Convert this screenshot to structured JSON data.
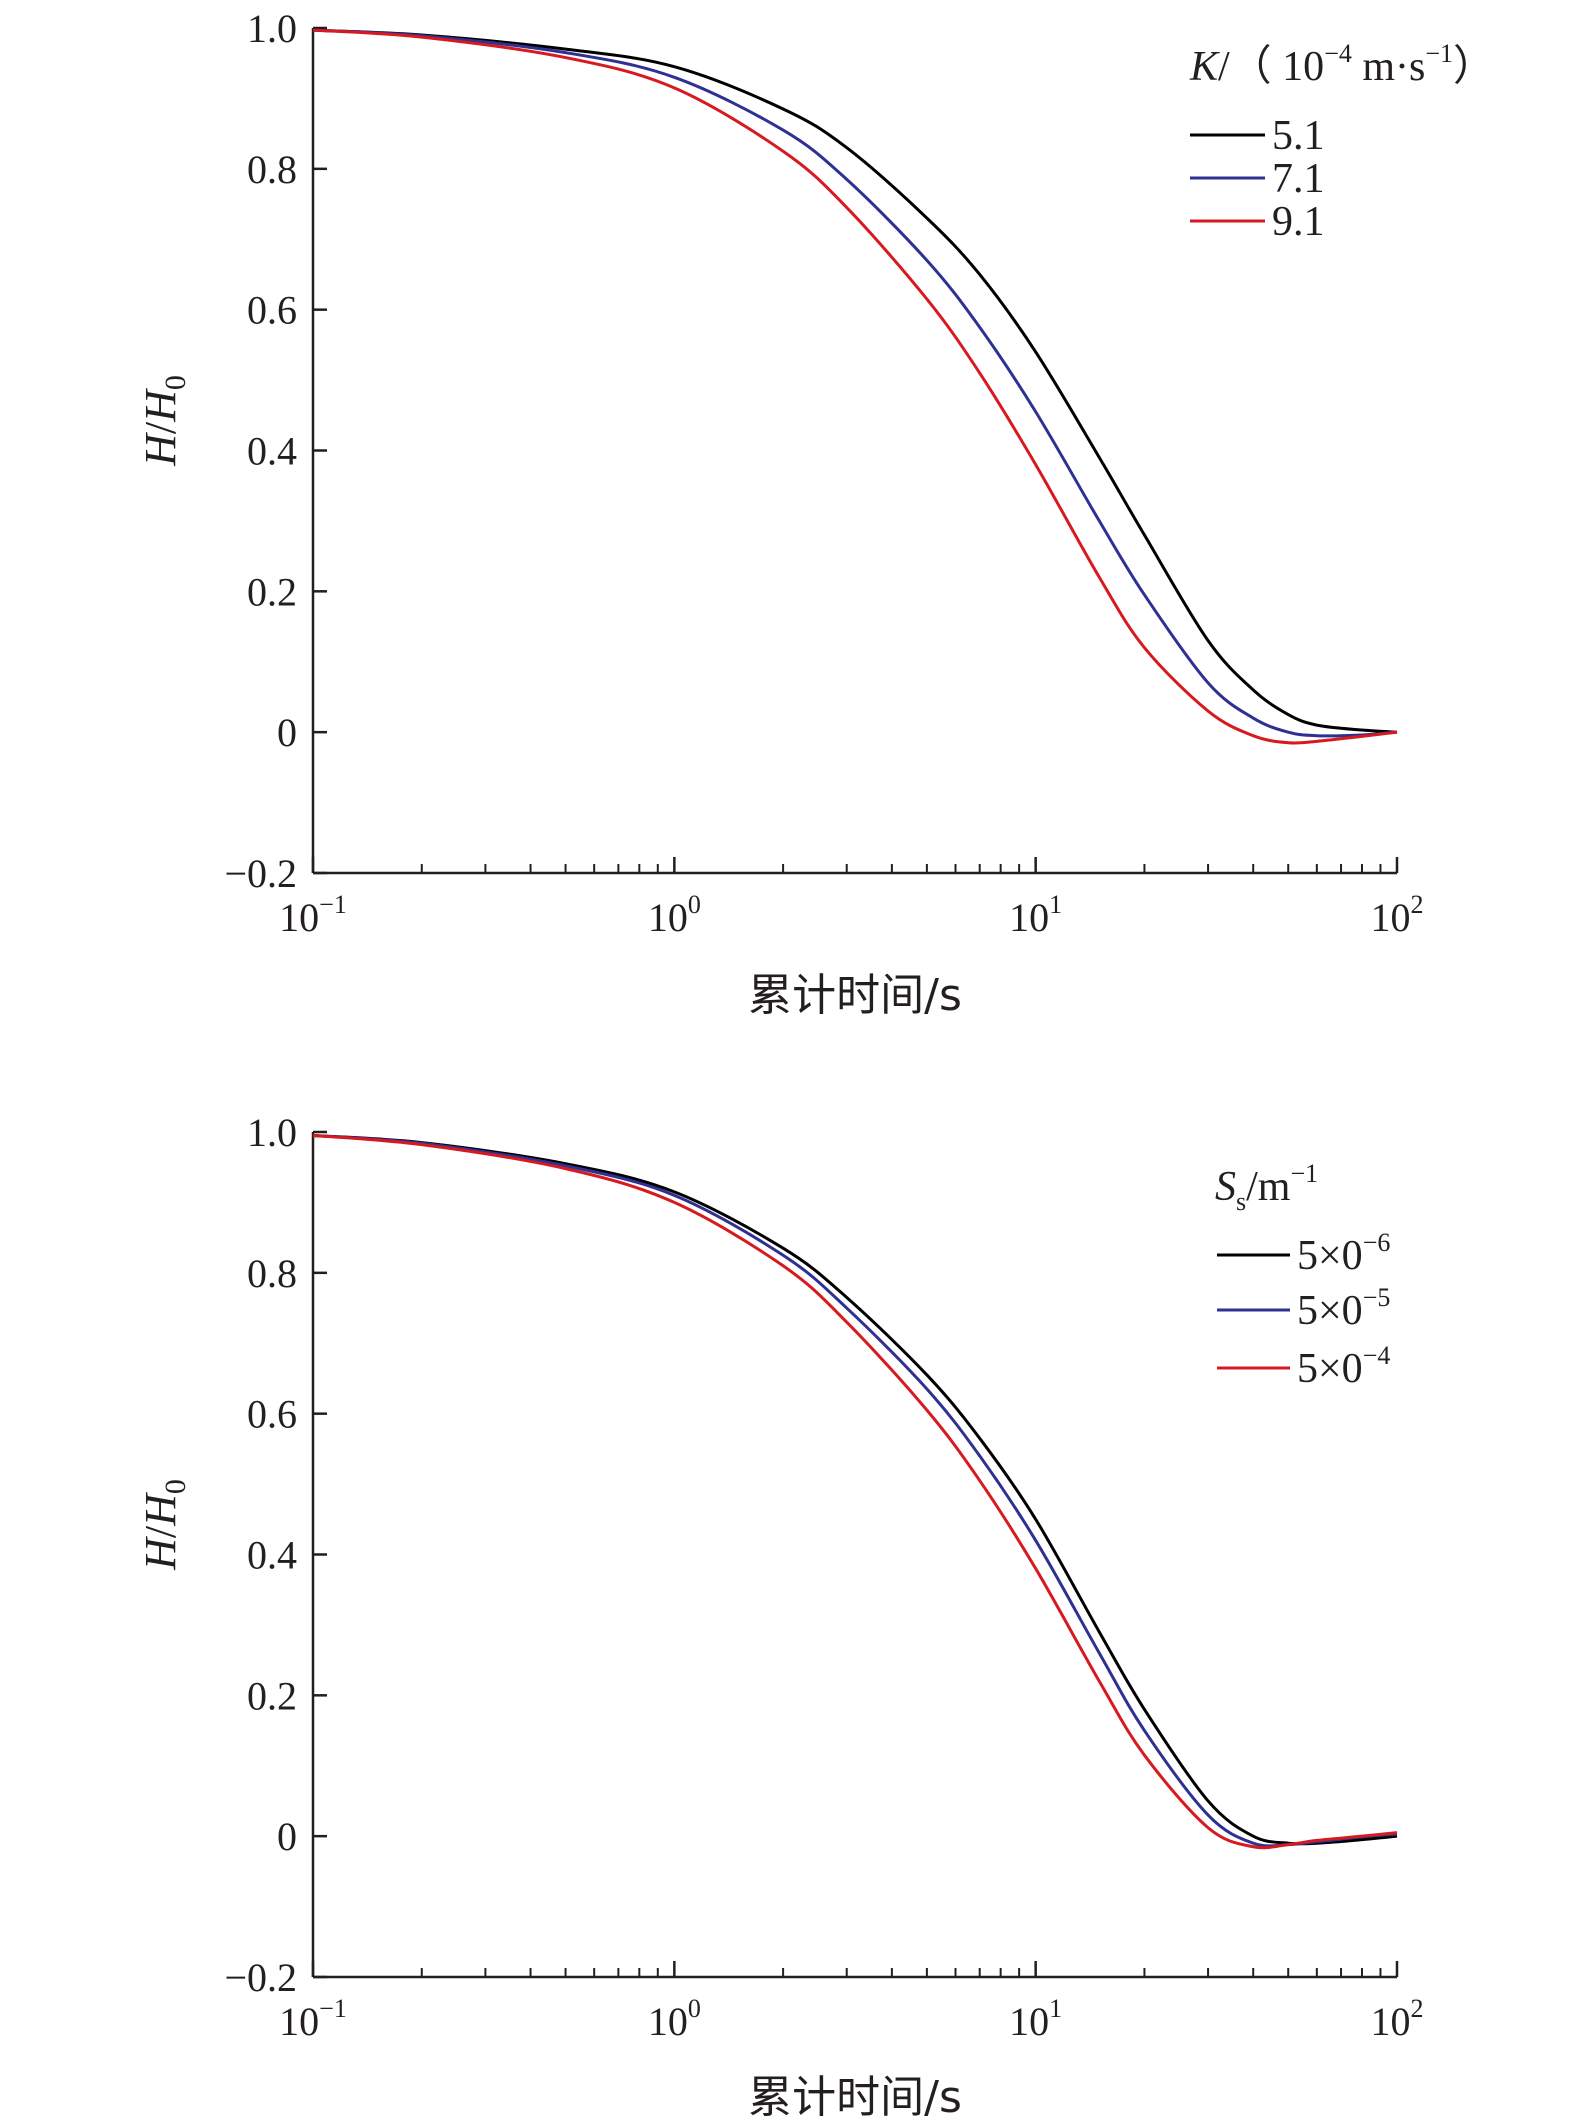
{
  "chart_data": [
    {
      "type": "line",
      "xscale": "log",
      "xlim": [
        0.1,
        100
      ],
      "ylim": [
        -0.2,
        1.0
      ],
      "x_ticks": [
        {
          "base": "10",
          "exp": "−1"
        },
        {
          "base": "10",
          "exp": "0"
        },
        {
          "base": "10",
          "exp": "1"
        },
        {
          "base": "10",
          "exp": "2"
        }
      ],
      "y_ticks": [
        "−0.2",
        "0",
        "0.2",
        "0.4",
        "0.6",
        "0.8",
        "1.0"
      ],
      "xlabel": "累计时间/s",
      "ylabel": {
        "h": "H",
        "slash": "/",
        "h0": "H",
        "sub": "0"
      },
      "legend": {
        "placement": "top-right",
        "title_parts": [
          {
            "t": "K",
            "italic": true
          },
          {
            "t": "/（ 10"
          },
          {
            "t": "−4",
            "sup": true
          },
          {
            "t": " m·s"
          },
          {
            "t": "−1",
            "sup": true
          },
          {
            "t": "）"
          }
        ]
      },
      "series": [
        {
          "name": "5.1",
          "color": "#000000",
          "x": [
            0.1,
            0.2,
            0.5,
            1,
            2,
            3,
            5,
            7,
            10,
            15,
            20,
            30,
            40,
            50,
            60,
            80,
            100
          ],
          "y": [
            0.997,
            0.99,
            0.97,
            0.945,
            0.885,
            0.83,
            0.73,
            0.65,
            0.54,
            0.39,
            0.28,
            0.13,
            0.06,
            0.025,
            0.01,
            0.003,
            0.0
          ]
        },
        {
          "name": "7.1",
          "color": "#2e3192",
          "x": [
            0.1,
            0.2,
            0.5,
            1,
            2,
            3,
            5,
            7,
            10,
            15,
            20,
            30,
            40,
            50,
            60,
            80,
            100
          ],
          "y": [
            0.997,
            0.989,
            0.965,
            0.93,
            0.855,
            0.785,
            0.67,
            0.575,
            0.455,
            0.3,
            0.195,
            0.07,
            0.02,
            0.0,
            -0.005,
            -0.004,
            0.0
          ]
        },
        {
          "name": "9.1",
          "color": "#d71920",
          "x": [
            0.1,
            0.2,
            0.5,
            1,
            2,
            3,
            5,
            7,
            10,
            15,
            20,
            30,
            40,
            50,
            60,
            80,
            100
          ],
          "y": [
            0.997,
            0.987,
            0.958,
            0.915,
            0.825,
            0.745,
            0.615,
            0.51,
            0.38,
            0.22,
            0.12,
            0.03,
            -0.005,
            -0.015,
            -0.013,
            -0.006,
            0.0
          ]
        }
      ]
    },
    {
      "type": "line",
      "xscale": "log",
      "xlim": [
        0.1,
        100
      ],
      "ylim": [
        -0.2,
        1.0
      ],
      "x_ticks": [
        {
          "base": "10",
          "exp": "−1"
        },
        {
          "base": "10",
          "exp": "0"
        },
        {
          "base": "10",
          "exp": "1"
        },
        {
          "base": "10",
          "exp": "2"
        }
      ],
      "y_ticks": [
        "−0.2",
        "0",
        "0.2",
        "0.4",
        "0.6",
        "0.8",
        "1.0"
      ],
      "xlabel": "累计时间/s",
      "ylabel": {
        "h": "H",
        "slash": "/",
        "h0": "H",
        "sub": "0"
      },
      "legend": {
        "placement": "top-right",
        "title_parts": [
          {
            "t": "S",
            "italic": true
          },
          {
            "t": "s",
            "sub": true
          },
          {
            "t": "/m"
          },
          {
            "t": "−1",
            "sup": true
          }
        ]
      },
      "series": [
        {
          "name": "5×0",
          "exp": "−6",
          "color": "#000000",
          "x": [
            0.1,
            0.2,
            0.5,
            1,
            2,
            3,
            5,
            7,
            10,
            15,
            20,
            30,
            40,
            50,
            60,
            80,
            100
          ],
          "y": [
            0.995,
            0.985,
            0.955,
            0.915,
            0.835,
            0.765,
            0.655,
            0.565,
            0.45,
            0.29,
            0.18,
            0.05,
            0.0,
            -0.01,
            -0.01,
            -0.005,
            0.0
          ]
        },
        {
          "name": "5×0",
          "exp": "−5",
          "color": "#2e3192",
          "x": [
            0.1,
            0.2,
            0.5,
            1,
            2,
            3,
            5,
            7,
            10,
            15,
            20,
            30,
            40,
            50,
            60,
            80,
            100
          ],
          "y": [
            0.995,
            0.984,
            0.952,
            0.91,
            0.825,
            0.75,
            0.635,
            0.54,
            0.42,
            0.26,
            0.15,
            0.03,
            -0.01,
            -0.012,
            -0.008,
            -0.001,
            0.003
          ]
        },
        {
          "name": "5×0",
          "exp": "−4",
          "color": "#d71920",
          "x": [
            0.1,
            0.2,
            0.5,
            1,
            2,
            3,
            5,
            7,
            10,
            15,
            20,
            30,
            40,
            50,
            60,
            80,
            100
          ],
          "y": [
            0.995,
            0.982,
            0.948,
            0.9,
            0.81,
            0.73,
            0.605,
            0.505,
            0.38,
            0.22,
            0.115,
            0.012,
            -0.015,
            -0.012,
            -0.006,
            0.0,
            0.005
          ]
        }
      ]
    }
  ]
}
